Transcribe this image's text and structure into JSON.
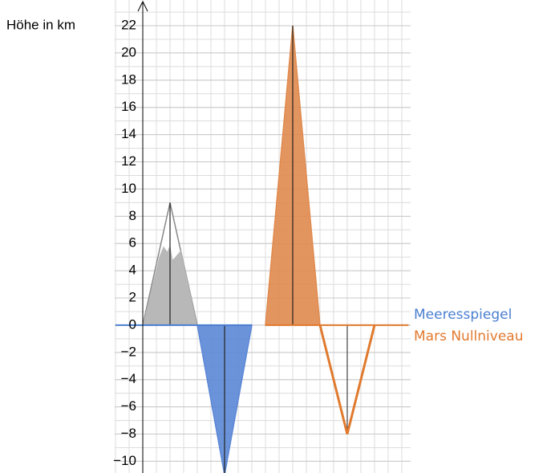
{
  "chart_data": {
    "type": "area",
    "y_label": "Höhe in km",
    "xlim": [
      -2.06,
      19.65
    ],
    "ylim": [
      -10.86,
      23.89
    ],
    "grid": true,
    "yticks": [
      {
        "value": -10,
        "label": "−10"
      },
      {
        "value": -8,
        "label": "−8"
      },
      {
        "value": -6,
        "label": "−6"
      },
      {
        "value": -4,
        "label": "−4"
      },
      {
        "value": -2,
        "label": "−2"
      },
      0,
      2,
      4,
      6,
      8,
      10,
      12,
      14,
      16,
      18,
      20,
      22
    ],
    "series": [
      {
        "color": "#b8b8b8",
        "x": [
          0,
          2,
          4
        ],
        "values": [
          0,
          9,
          0
        ],
        "filled": true
      },
      {
        "color": "#5b87d6",
        "x": [
          4,
          6,
          8
        ],
        "values": [
          0,
          -11,
          0
        ],
        "filled": true
      },
      {
        "color": "#e08a4e",
        "x": [
          9,
          11,
          13
        ],
        "values": [
          0,
          22,
          0
        ],
        "filled": true
      },
      {
        "color": "#e07a2e",
        "x": [
          13,
          15,
          17
        ],
        "values": [
          0,
          -8,
          0
        ],
        "filled": false
      },
      {
        "name": "Meeresspiegel",
        "color": "#4a7fd0",
        "x": [
          -2,
          8
        ],
        "values": [
          0,
          0
        ],
        "filled": false
      },
      {
        "name": "Mars Nullniveau",
        "color": "#e07a2e",
        "x": [
          9,
          19.5
        ],
        "values": [
          0,
          0
        ],
        "filled": false
      }
    ]
  }
}
